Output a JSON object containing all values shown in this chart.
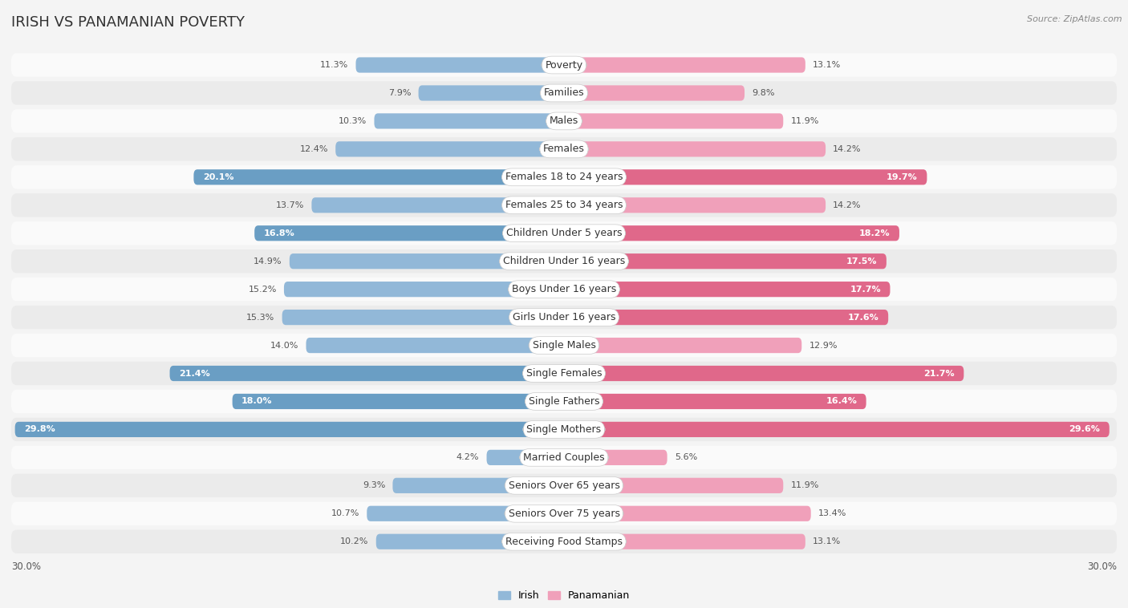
{
  "title": "IRISH VS PANAMANIAN POVERTY",
  "source": "Source: ZipAtlas.com",
  "categories": [
    "Poverty",
    "Families",
    "Males",
    "Females",
    "Females 18 to 24 years",
    "Females 25 to 34 years",
    "Children Under 5 years",
    "Children Under 16 years",
    "Boys Under 16 years",
    "Girls Under 16 years",
    "Single Males",
    "Single Females",
    "Single Fathers",
    "Single Mothers",
    "Married Couples",
    "Seniors Over 65 years",
    "Seniors Over 75 years",
    "Receiving Food Stamps"
  ],
  "irish": [
    11.3,
    7.9,
    10.3,
    12.4,
    20.1,
    13.7,
    16.8,
    14.9,
    15.2,
    15.3,
    14.0,
    21.4,
    18.0,
    29.8,
    4.2,
    9.3,
    10.7,
    10.2
  ],
  "panamanian": [
    13.1,
    9.8,
    11.9,
    14.2,
    19.7,
    14.2,
    18.2,
    17.5,
    17.7,
    17.6,
    12.9,
    21.7,
    16.4,
    29.6,
    5.6,
    11.9,
    13.4,
    13.1
  ],
  "irish_color_normal": "#92b8d8",
  "irish_color_highlight": "#6a9ec4",
  "panamanian_color_normal": "#f0a0ba",
  "panamanian_color_highlight": "#e0688a",
  "bg_color": "#f4f4f4",
  "row_light": "#fafafa",
  "row_dark": "#ebebeb",
  "axis_limit": 30.0,
  "title_fontsize": 13,
  "label_fontsize": 9,
  "value_fontsize": 8,
  "highlight_threshold": 15.5
}
